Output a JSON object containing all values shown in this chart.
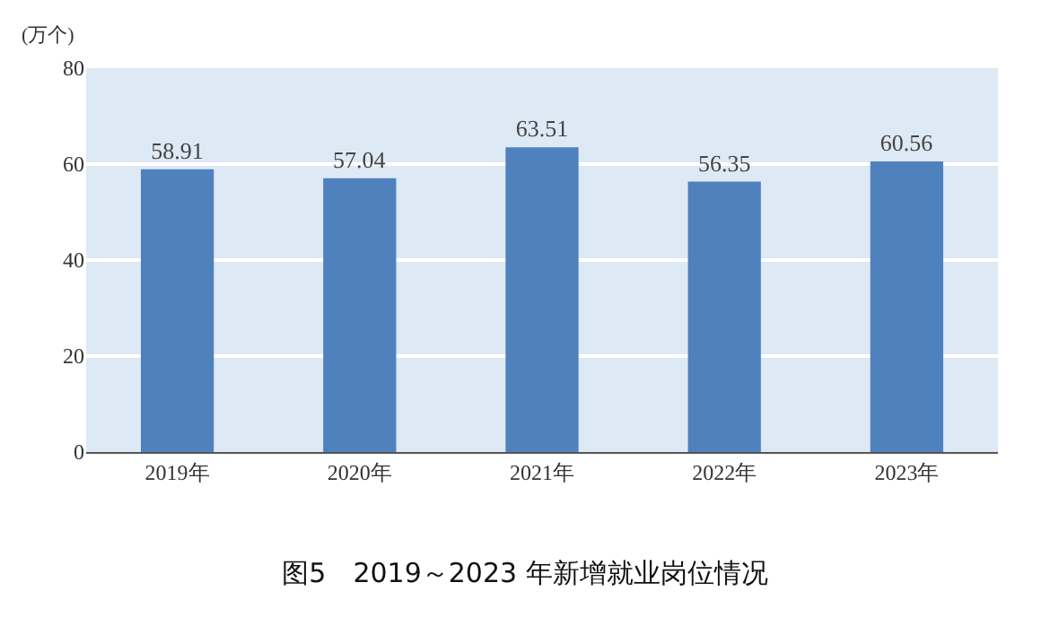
{
  "chart_data": {
    "type": "bar",
    "title": "图5　2019～2023 年新增就业岗位情况",
    "ylabel": "(万个)",
    "categories": [
      "2019年",
      "2020年",
      "2021年",
      "2022年",
      "2023年"
    ],
    "values": [
      58.91,
      57.04,
      63.51,
      56.35,
      60.56
    ],
    "color": "#4f81bd",
    "ylim": [
      0,
      80
    ],
    "yticks": [
      0,
      20,
      40,
      60,
      80
    ],
    "grid": "y",
    "data_labels": true
  }
}
